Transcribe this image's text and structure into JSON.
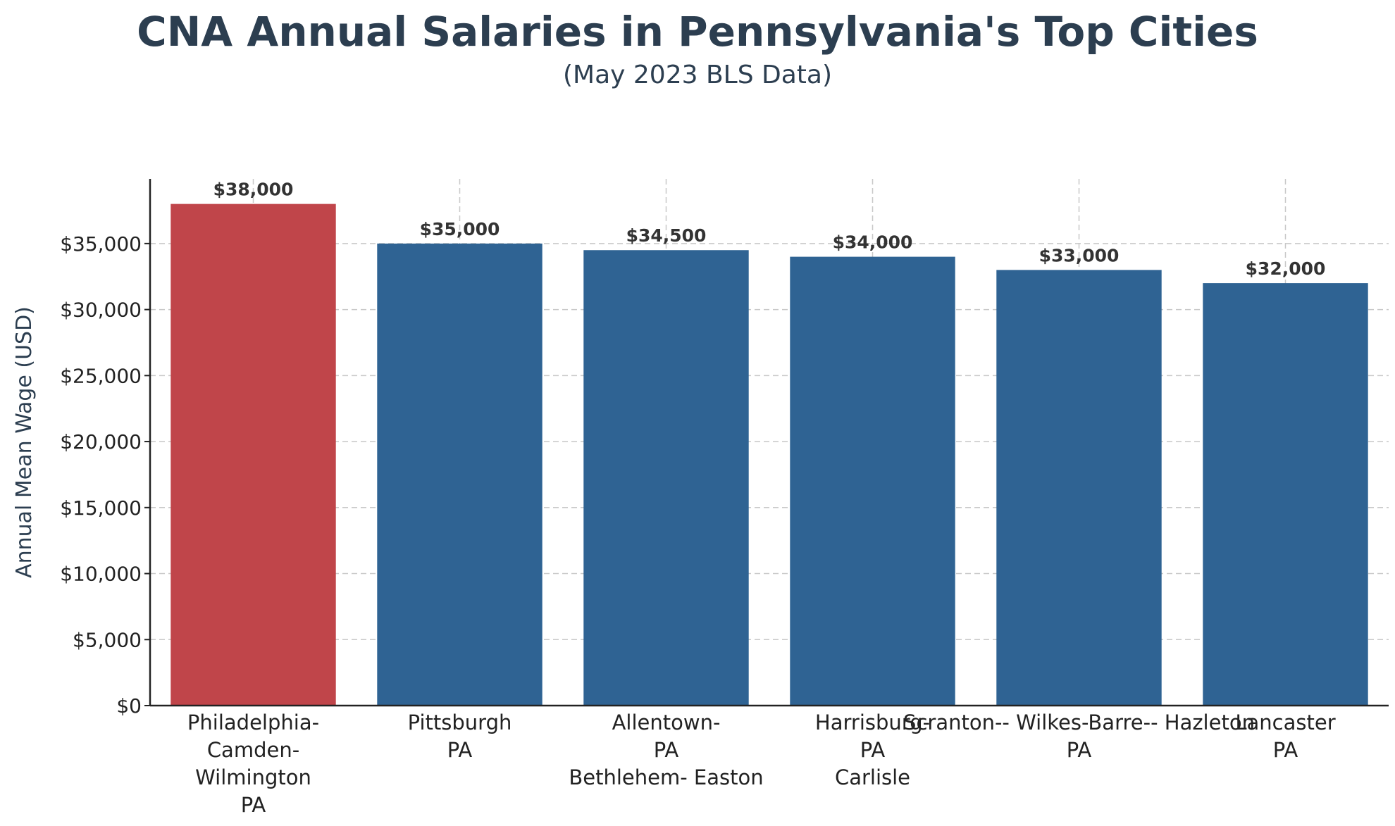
{
  "chart_data": {
    "type": "bar",
    "title": "CNA Annual Salaries in Pennsylvania's Top Cities",
    "subtitle": "(May 2023 BLS Data)",
    "xlabel": "",
    "ylabel": "Annual Mean Wage (USD)",
    "ylim": [
      0,
      39900
    ],
    "yticks": [
      0,
      5000,
      10000,
      15000,
      20000,
      25000,
      30000,
      35000
    ],
    "ytick_labels": [
      "$0",
      "$5,000",
      "$10,000",
      "$15,000",
      "$20,000",
      "$25,000",
      "$30,000",
      "$35,000"
    ],
    "grid": true,
    "categories": [
      [
        "Philadelphia-",
        "Camden-",
        "Wilmington",
        "PA"
      ],
      [
        "Pittsburgh",
        "PA"
      ],
      [
        "Allentown-",
        "PA",
        "Bethlehem- Easton"
      ],
      [
        "Harrisburg-",
        "PA",
        "Carlisle"
      ],
      [
        "Scranton-- Wilkes-Barre-- Hazleton",
        "PA"
      ],
      [
        "Lancaster",
        "PA"
      ]
    ],
    "values": [
      38000,
      35000,
      34500,
      34000,
      33000,
      32000
    ],
    "value_labels": [
      "$38,000",
      "$35,000",
      "$34,500",
      "$34,000",
      "$33,000",
      "$32,000"
    ],
    "colors": [
      "#c0454a",
      "#2f6393",
      "#2f6393",
      "#2f6393",
      "#2f6393",
      "#2f6393"
    ],
    "title_color": "#2c3e50"
  }
}
